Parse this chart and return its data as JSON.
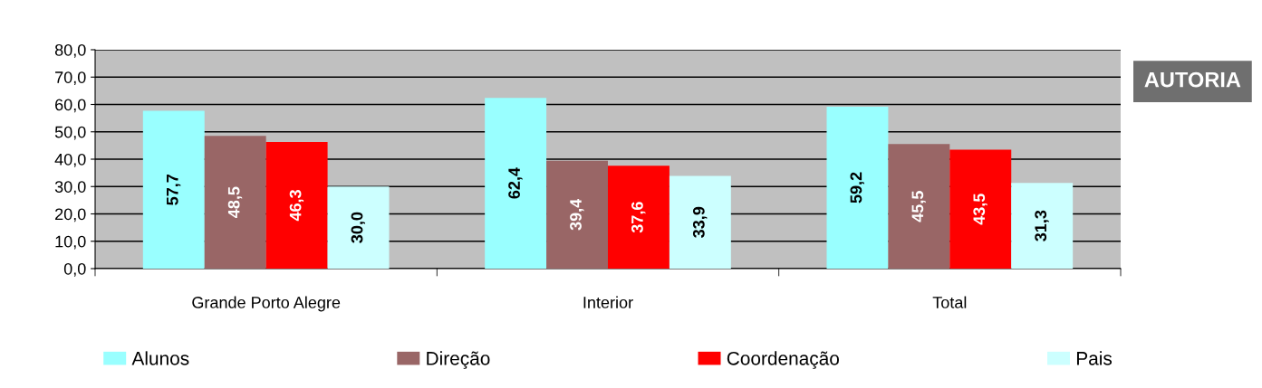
{
  "chart_data": {
    "type": "bar",
    "categories": [
      "Grande Porto Alegre",
      "Interior",
      "Total"
    ],
    "series": [
      {
        "name": "Alunos",
        "color": "#99ffff",
        "values": [
          57.7,
          62.4,
          59.2
        ]
      },
      {
        "name": "Direção",
        "color": "#996666",
        "values": [
          48.5,
          39.4,
          45.5
        ]
      },
      {
        "name": "Coordenação",
        "color": "#ff0000",
        "values": [
          46.3,
          37.6,
          43.5
        ]
      },
      {
        "name": "Pais",
        "color": "#ccffff",
        "values": [
          30.0,
          33.9,
          31.3
        ]
      }
    ],
    "ylim": [
      0,
      80
    ],
    "yticks": [
      {
        "value": 0,
        "label": "0,0"
      },
      {
        "value": 10,
        "label": "10,0"
      },
      {
        "value": 20,
        "label": "20,0"
      },
      {
        "value": 30,
        "label": "30,0"
      },
      {
        "value": 40,
        "label": "40,0"
      },
      {
        "value": 50,
        "label": "50,0"
      },
      {
        "value": 60,
        "label": "60,0"
      },
      {
        "value": 70,
        "label": "70,0"
      },
      {
        "value": 80,
        "label": "80,0"
      }
    ],
    "value_labels": [
      [
        "57,7",
        "62,4",
        "59,2"
      ],
      [
        "48,5",
        "39,4",
        "45,5"
      ],
      [
        "46,3",
        "37,6",
        "43,5"
      ],
      [
        "30,0",
        "33,9",
        "31,3"
      ]
    ],
    "grid": "y",
    "legend": "bottom",
    "annotations": [
      "AUTORIA"
    ]
  }
}
